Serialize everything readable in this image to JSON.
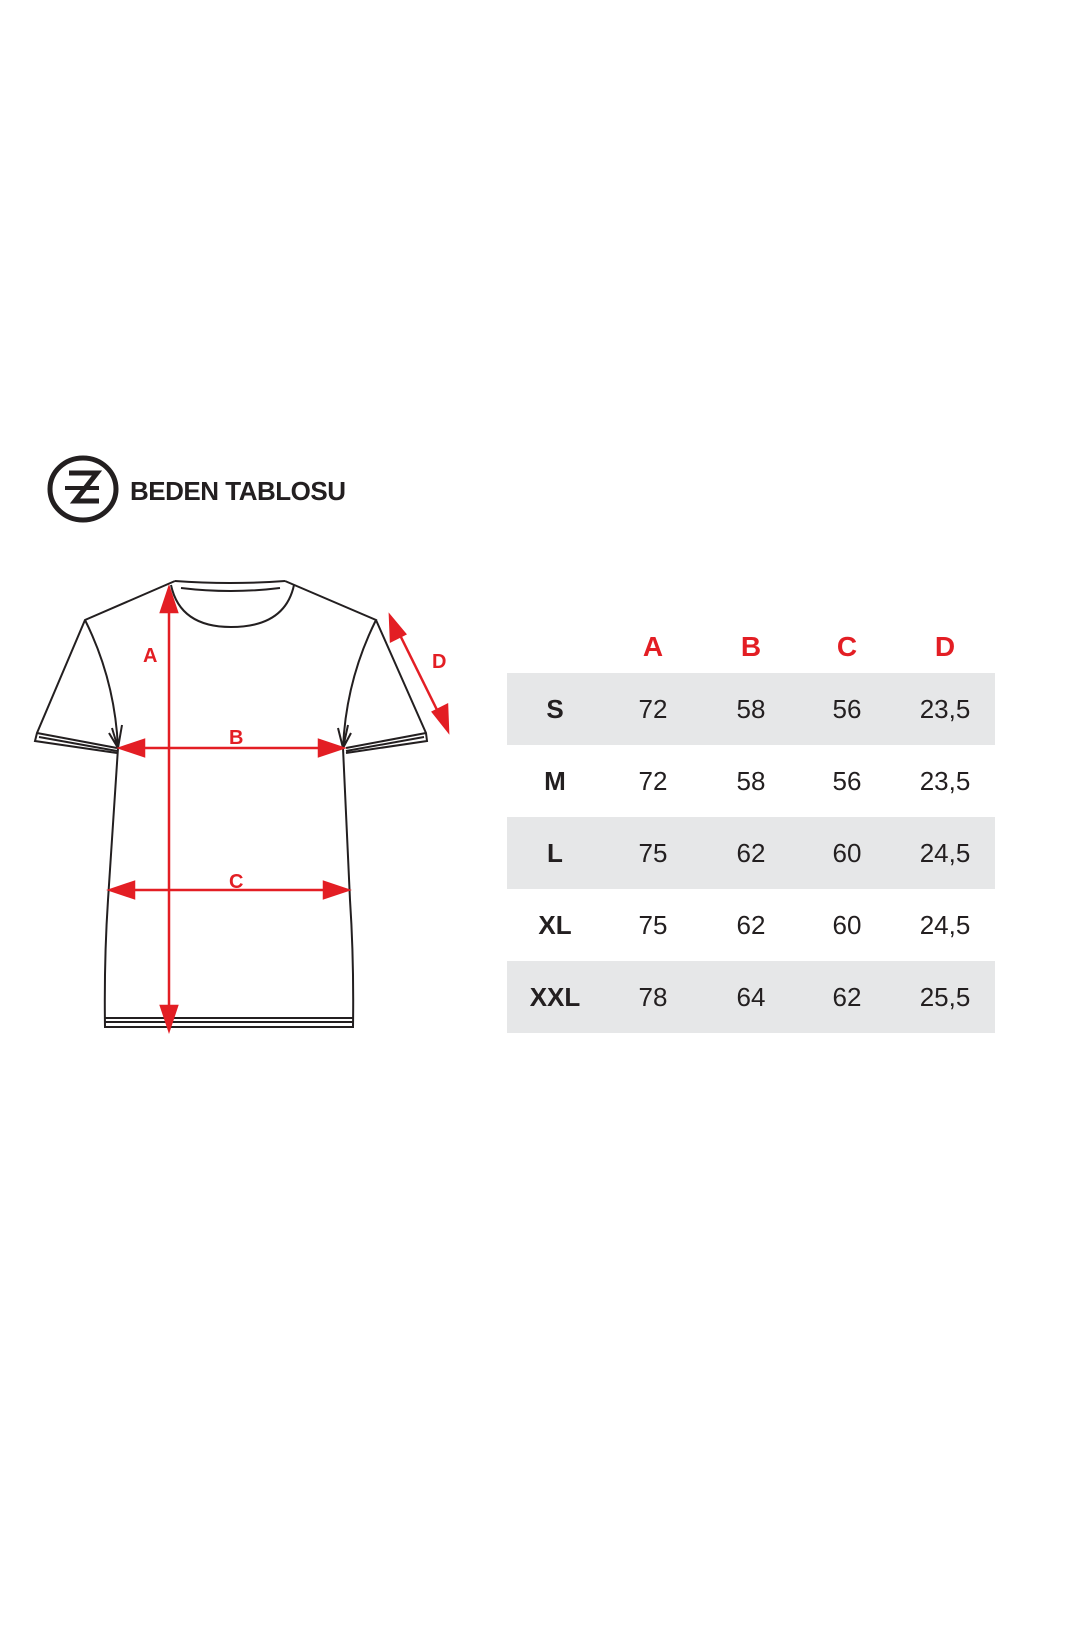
{
  "header": {
    "title": "BEDEN TABLOSU",
    "logo_icon": "ze-circle-logo"
  },
  "diagram": {
    "labels": {
      "a": "A",
      "b": "B",
      "c": "C",
      "d": "D"
    },
    "accent_color": "#e31e24"
  },
  "table": {
    "columns": [
      "",
      "A",
      "B",
      "C",
      "D"
    ],
    "rows": [
      {
        "size": "S",
        "values": [
          "72",
          "58",
          "56",
          "23,5"
        ]
      },
      {
        "size": "M",
        "values": [
          "72",
          "58",
          "56",
          "23,5"
        ]
      },
      {
        "size": "L",
        "values": [
          "75",
          "62",
          "60",
          "24,5"
        ]
      },
      {
        "size": "XL",
        "values": [
          "75",
          "62",
          "60",
          "24,5"
        ]
      },
      {
        "size": "XXL",
        "values": [
          "78",
          "64",
          "62",
          "25,5"
        ]
      }
    ],
    "shade_color": "#e6e7e8"
  }
}
